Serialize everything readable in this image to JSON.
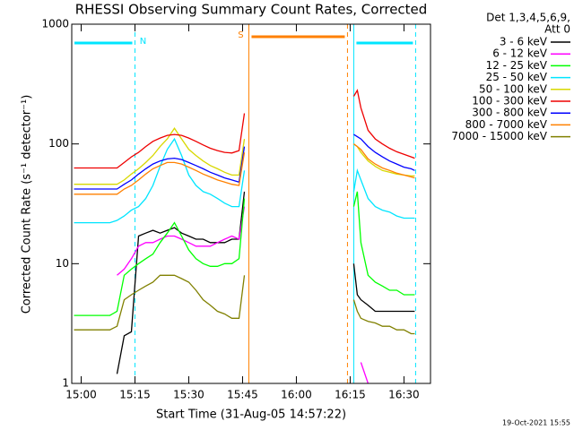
{
  "chart_data": {
    "type": "line",
    "title": "RHESSI Observing Summary Count Rates, Corrected",
    "x_label": "Start Time (31-Aug-05 14:57:22)",
    "y_label": "Corrected Count Rate (s⁻¹ detector⁻¹)",
    "legend_header": [
      "Det 1,3,4,5,6,9,",
      "Att 0"
    ],
    "footer": "19-Oct-2021 15:55",
    "log_y": true,
    "xlim": [
      -2.63,
      97.4
    ],
    "ylim": [
      1,
      1000
    ],
    "yticks": [
      1,
      10,
      100,
      1000
    ],
    "xticks": [
      {
        "value": 0,
        "label": "15:00"
      },
      {
        "value": 15,
        "label": "15:15"
      },
      {
        "value": 30,
        "label": "15:30"
      },
      {
        "value": 45,
        "label": "15:45"
      },
      {
        "value": 60,
        "label": "16:00"
      },
      {
        "value": 75,
        "label": "16:15"
      },
      {
        "value": 90,
        "label": "16:30"
      }
    ],
    "intervals": [
      {
        "start": -2.63,
        "end": 15,
        "label": "N",
        "color": "#00e5ff"
      },
      {
        "start": 46.75,
        "end": 74.25,
        "label": "S",
        "color": "#ff8000"
      },
      {
        "start": 76,
        "end": 93.25,
        "color": "#00e5ff"
      }
    ],
    "x": [
      -2,
      0,
      2,
      4,
      6,
      8,
      10,
      12,
      14,
      16,
      18,
      20,
      22,
      24,
      26,
      28,
      30,
      32,
      34,
      36,
      38,
      40,
      42,
      44,
      45.5,
      60,
      76,
      77,
      78,
      80,
      82,
      84,
      86,
      88,
      90,
      92,
      93
    ],
    "series": [
      {
        "name": "3 - 6 keV",
        "color": "#000000",
        "values": [
          null,
          null,
          null,
          null,
          null,
          null,
          1.2,
          2.5,
          2.7,
          17,
          18,
          19,
          18,
          19,
          20,
          18,
          17,
          16,
          16,
          15,
          15,
          15,
          16,
          16,
          40,
          null,
          10,
          5.5,
          5,
          4.5,
          4,
          4,
          4,
          4,
          4,
          4,
          4
        ]
      },
      {
        "name": "6 - 12 keV",
        "color": "#ff00ff",
        "values": [
          null,
          null,
          null,
          null,
          null,
          null,
          8,
          9,
          11,
          14,
          15,
          15,
          16,
          17,
          17,
          16,
          15,
          14,
          14,
          14,
          15,
          16,
          17,
          16,
          30,
          null,
          null,
          null,
          1.5,
          1.0,
          null,
          null,
          null,
          null,
          null,
          null,
          null
        ]
      },
      {
        "name": "12 - 25 keV",
        "color": "#00ff00",
        "values": [
          3.7,
          3.7,
          3.7,
          3.7,
          3.7,
          3.7,
          4,
          8,
          9,
          10,
          11,
          12,
          15,
          18,
          22,
          17,
          13,
          11,
          10,
          9.5,
          9.5,
          10,
          10,
          11,
          35,
          null,
          30,
          40,
          15,
          8,
          7,
          6.5,
          6,
          6,
          5.5,
          5.5,
          5.5
        ]
      },
      {
        "name": "25 - 50 keV",
        "color": "#00e5ff",
        "values": [
          22,
          22,
          22,
          22,
          22,
          22,
          23,
          25,
          28,
          30,
          35,
          45,
          65,
          90,
          110,
          80,
          55,
          45,
          40,
          38,
          35,
          32,
          30,
          30,
          60,
          null,
          40,
          60,
          50,
          35,
          30,
          28,
          27,
          25,
          24,
          24,
          24
        ]
      },
      {
        "name": "50 - 100 keV",
        "color": "#d8d800",
        "values": [
          46,
          46,
          46,
          46,
          46,
          46,
          46,
          50,
          56,
          62,
          70,
          80,
          95,
          110,
          135,
          110,
          90,
          80,
          72,
          66,
          62,
          58,
          55,
          55,
          110,
          null,
          100,
          95,
          85,
          72,
          65,
          60,
          58,
          56,
          55,
          54,
          54
        ]
      },
      {
        "name": "100 - 300 keV",
        "color": "#ee0000",
        "values": [
          63,
          63,
          63,
          63,
          63,
          63,
          63,
          70,
          78,
          85,
          95,
          105,
          112,
          118,
          120,
          118,
          112,
          105,
          98,
          92,
          88,
          85,
          84,
          88,
          180,
          null,
          250,
          280,
          200,
          130,
          110,
          100,
          92,
          86,
          82,
          78,
          76
        ]
      },
      {
        "name": "300 - 800 keV",
        "color": "#0000ff",
        "values": [
          42,
          42,
          42,
          42,
          42,
          42,
          42,
          46,
          50,
          56,
          62,
          68,
          72,
          75,
          76,
          74,
          70,
          66,
          62,
          58,
          55,
          52,
          50,
          48,
          95,
          null,
          120,
          115,
          110,
          95,
          85,
          78,
          72,
          68,
          64,
          62,
          60
        ]
      },
      {
        "name": "800 - 7000 keV",
        "color": "#ff8000",
        "values": [
          38,
          38,
          38,
          38,
          38,
          38,
          38,
          42,
          45,
          50,
          56,
          62,
          66,
          70,
          70,
          68,
          64,
          60,
          56,
          53,
          50,
          48,
          46,
          45,
          85,
          null,
          100,
          95,
          90,
          75,
          68,
          63,
          60,
          57,
          55,
          53,
          52
        ]
      },
      {
        "name": "7000 - 15000 keV",
        "color": "#808000",
        "values": [
          2.8,
          2.8,
          2.8,
          2.8,
          2.8,
          2.8,
          3,
          5,
          5.5,
          6,
          6.5,
          7,
          8,
          8,
          8,
          7.5,
          7,
          6,
          5,
          4.5,
          4,
          3.8,
          3.5,
          3.5,
          8,
          null,
          5,
          4,
          3.5,
          3.3,
          3.2,
          3,
          3,
          2.8,
          2.8,
          2.6,
          2.6
        ]
      }
    ]
  }
}
